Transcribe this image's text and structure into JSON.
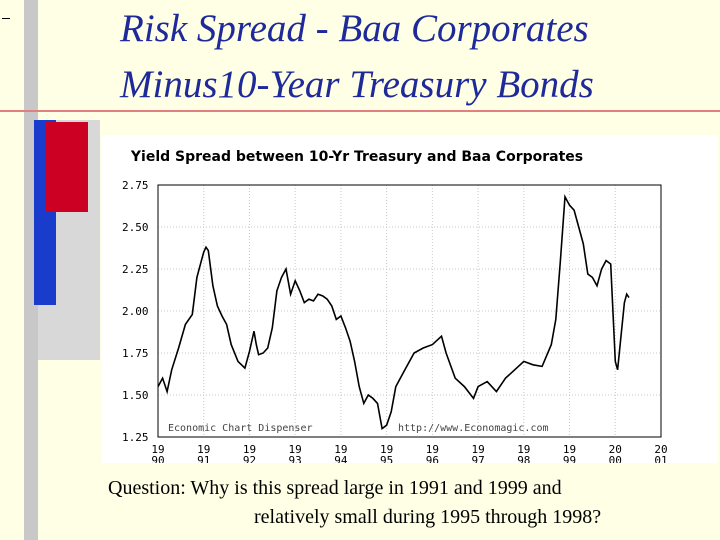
{
  "slide": {
    "title_line1": "Risk Spread - Baa Corporates",
    "title_line2": "Minus10-Year Treasury Bonds",
    "question_line1": "Question: Why is this spread large in 1991 and 1999 and",
    "question_line2": "relatively small during 1995 through 1998?"
  },
  "colors": {
    "background": "#ffffe6",
    "title": "#1f2a9a",
    "accent_red": "#cc0022",
    "accent_blue": "#1a3ccc",
    "accent_gray": "#c8c8c8",
    "line": "#000000"
  },
  "chart_data": {
    "type": "line",
    "title": "Yield Spread between 10-Yr Treasury and Baa Corporates",
    "xlabel": "",
    "ylabel": "",
    "ylim": [
      1.25,
      2.75
    ],
    "xlim": [
      1990,
      2001
    ],
    "yticks": [
      "2.75",
      "2.50",
      "2.25",
      "2.00",
      "1.75",
      "1.50",
      "1.25"
    ],
    "xticks": [
      {
        "top": "19",
        "bottom": "90"
      },
      {
        "top": "19",
        "bottom": "91"
      },
      {
        "top": "19",
        "bottom": "92"
      },
      {
        "top": "19",
        "bottom": "93"
      },
      {
        "top": "19",
        "bottom": "94"
      },
      {
        "top": "19",
        "bottom": "95"
      },
      {
        "top": "19",
        "bottom": "96"
      },
      {
        "top": "19",
        "bottom": "97"
      },
      {
        "top": "19",
        "bottom": "98"
      },
      {
        "top": "19",
        "bottom": "99"
      },
      {
        "top": "20",
        "bottom": "00"
      },
      {
        "top": "20",
        "bottom": "01"
      }
    ],
    "grid": true,
    "annotations": [
      "Economic Chart Dispenser",
      "http://www.Economagic.com"
    ],
    "series": [
      {
        "x": [
          1990.0,
          1990.1,
          1990.2,
          1990.3,
          1990.45,
          1990.6,
          1990.75,
          1990.85,
          1990.95,
          1991.0,
          1991.05,
          1991.1,
          1991.2,
          1991.3,
          1991.4,
          1991.5,
          1991.6,
          1991.75,
          1991.9,
          1992.0,
          1992.1,
          1992.15,
          1992.2,
          1992.3,
          1992.4,
          1992.5,
          1992.6,
          1992.7,
          1992.8,
          1992.9,
          1993.0,
          1993.1,
          1993.2,
          1993.3,
          1993.4,
          1993.5,
          1993.6,
          1993.7,
          1993.8,
          1993.9,
          1994.0,
          1994.1,
          1994.2,
          1994.3,
          1994.4,
          1994.5,
          1994.6,
          1994.7,
          1994.8,
          1994.9,
          1995.0,
          1995.1,
          1995.2,
          1995.4,
          1995.6,
          1995.8,
          1996.0,
          1996.2,
          1996.3,
          1996.5,
          1996.7,
          1996.9,
          1997.0,
          1997.2,
          1997.4,
          1997.6,
          1997.8,
          1998.0,
          1998.2,
          1998.4,
          1998.6,
          1998.7,
          1998.8,
          1998.9,
          1999.0,
          1999.1,
          1999.2,
          1999.3,
          1999.4,
          1999.5,
          1999.6,
          1999.7,
          1999.8,
          1999.9,
          2000.0,
          2000.05,
          2000.1,
          2000.2,
          2000.25,
          2000.3
        ],
        "y": [
          1.55,
          1.6,
          1.52,
          1.65,
          1.78,
          1.92,
          1.98,
          2.2,
          2.3,
          2.35,
          2.38,
          2.36,
          2.15,
          2.03,
          1.97,
          1.92,
          1.8,
          1.7,
          1.66,
          1.76,
          1.88,
          1.8,
          1.74,
          1.75,
          1.78,
          1.9,
          2.12,
          2.2,
          2.25,
          2.1,
          2.18,
          2.12,
          2.05,
          2.07,
          2.06,
          2.1,
          2.09,
          2.07,
          2.03,
          1.95,
          1.97,
          1.9,
          1.82,
          1.7,
          1.55,
          1.45,
          1.5,
          1.48,
          1.45,
          1.3,
          1.32,
          1.4,
          1.55,
          1.65,
          1.75,
          1.78,
          1.8,
          1.85,
          1.75,
          1.6,
          1.55,
          1.48,
          1.55,
          1.58,
          1.52,
          1.6,
          1.65,
          1.7,
          1.68,
          1.67,
          1.8,
          1.95,
          2.3,
          2.68,
          2.63,
          2.6,
          2.5,
          2.4,
          2.22,
          2.2,
          2.15,
          2.25,
          2.3,
          2.28,
          1.7,
          1.65,
          1.78,
          2.05,
          2.1,
          2.08
        ]
      }
    ]
  }
}
